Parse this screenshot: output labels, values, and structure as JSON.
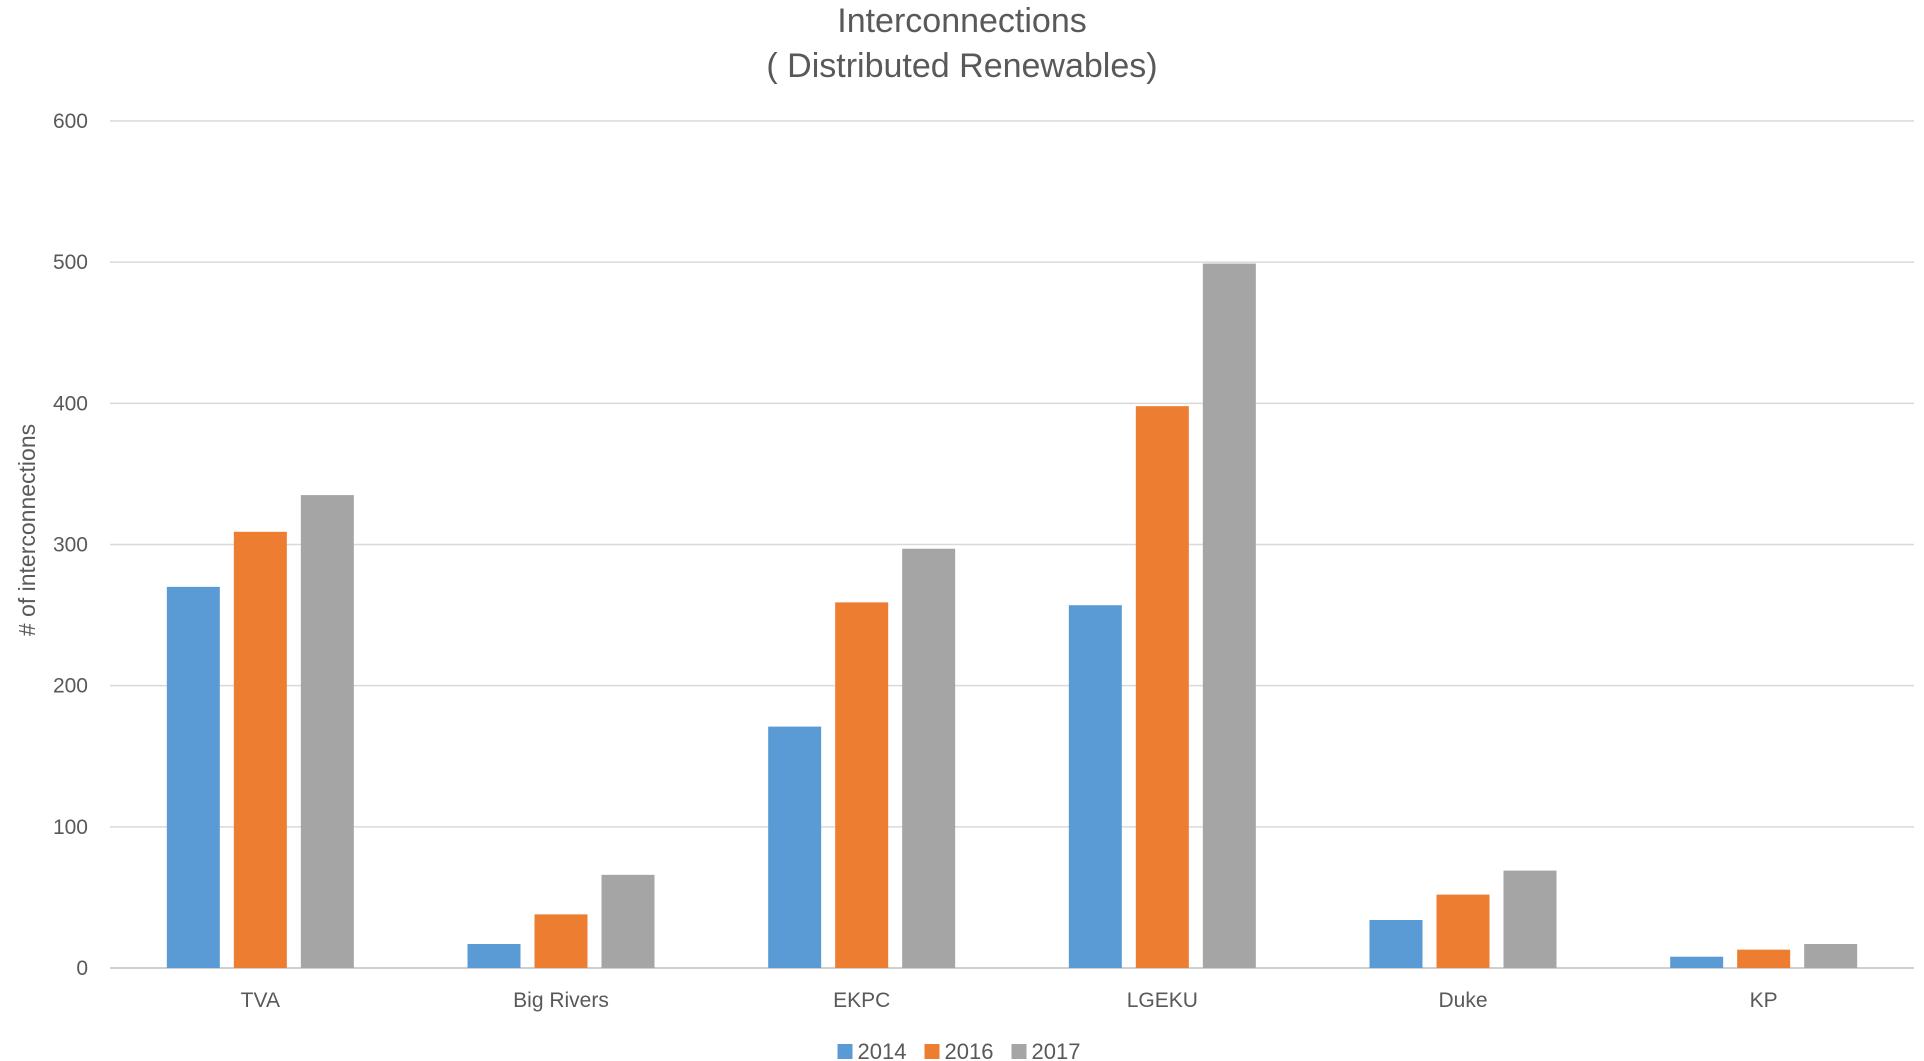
{
  "chart_data": {
    "type": "bar",
    "title": [
      "Interconnections",
      "( Distributed Renewables)"
    ],
    "xlabel": "",
    "ylabel": "# of interconnections",
    "categories": [
      "TVA",
      "Big Rivers",
      "EKPC",
      "LGEKU",
      "Duke",
      "KP"
    ],
    "series": [
      {
        "name": "2014",
        "color": "#5B9BD5",
        "values": [
          270,
          17,
          171,
          257,
          34,
          8
        ]
      },
      {
        "name": "2016",
        "color": "#ED7D31",
        "values": [
          309,
          38,
          259,
          398,
          52,
          13
        ]
      },
      {
        "name": "2017",
        "color": "#A5A5A5",
        "values": [
          335,
          66,
          297,
          499,
          69,
          17
        ]
      }
    ],
    "ylim": [
      0,
      600
    ],
    "yticks": [
      0,
      100,
      200,
      300,
      400,
      500,
      600
    ],
    "grid": true,
    "legend_position": "bottom"
  }
}
